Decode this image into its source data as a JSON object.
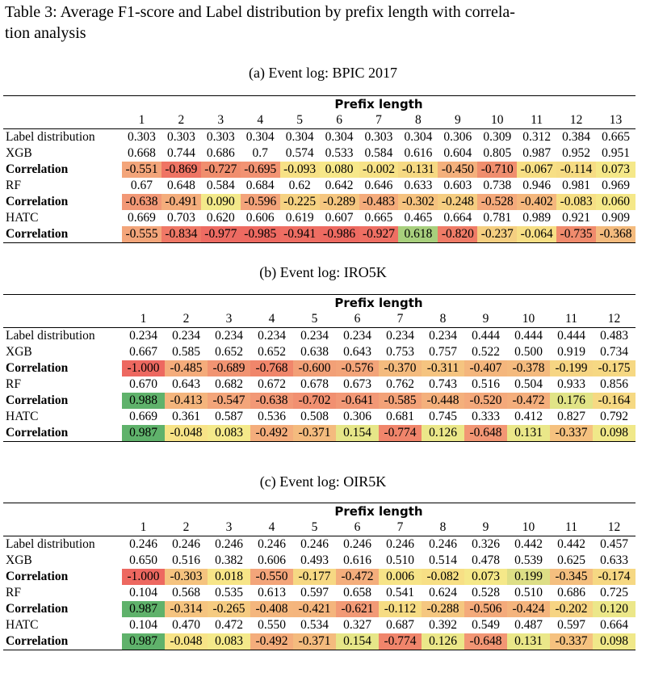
{
  "caption": "Table 3: Average F1-score and Label distribution by prefix length with correlation analysis",
  "caption_line1": "Table 3: Average F1-score and Label distribution by prefix length with correla-",
  "caption_line2": "tion analysis",
  "header_group_label": "Prefix length",
  "tables": [
    {
      "title": "(a) Event log: BPIC 2017",
      "prefixes": [
        "1",
        "2",
        "3",
        "4",
        "5",
        "6",
        "7",
        "8",
        "9",
        "10",
        "11",
        "12",
        "13"
      ],
      "rows": [
        {
          "label": "Label distribution",
          "bold": false,
          "values": [
            "0.303",
            "0.303",
            "0.303",
            "0.304",
            "0.304",
            "0.304",
            "0.303",
            "0.304",
            "0.306",
            "0.309",
            "0.312",
            "0.384",
            "0.665"
          ]
        },
        {
          "label": "XGB",
          "bold": false,
          "values": [
            "0.668",
            "0.744",
            "0.686",
            "0.7",
            "0.574",
            "0.533",
            "0.584",
            "0.616",
            "0.604",
            "0.805",
            "0.987",
            "0.952",
            "0.951"
          ]
        },
        {
          "label": "Correlation",
          "bold": true,
          "values": [
            "-0.551",
            "-0.869",
            "-0.727",
            "-0.695",
            "-0.093",
            "0.080",
            "-0.002",
            "-0.131",
            "-0.450",
            "-0.710",
            "-0.067",
            "-0.114",
            "0.073"
          ],
          "colors": [
            "#f3a57a",
            "#ef7464",
            "#f08e6e",
            "#f29373",
            "#f7e186",
            "#f7e88a",
            "#f7e287",
            "#f6d983",
            "#f4b07c",
            "#f08e6e",
            "#f7df85",
            "#f6dc84",
            "#f5e889"
          ]
        },
        {
          "label": "RF",
          "bold": false,
          "values": [
            "0.67",
            "0.648",
            "0.584",
            "0.684",
            "0.62",
            "0.642",
            "0.646",
            "0.633",
            "0.603",
            "0.738",
            "0.946",
            "0.981",
            "0.969"
          ]
        },
        {
          "label": "Correlation",
          "bold": true,
          "values": [
            "-0.638",
            "-0.491",
            "0.090",
            "-0.596",
            "-0.225",
            "-0.289",
            "-0.483",
            "-0.302",
            "-0.248",
            "-0.528",
            "-0.402",
            "-0.083",
            "0.060"
          ],
          "colors": [
            "#f29876",
            "#f4ad7c",
            "#f3e98a",
            "#f3a37a",
            "#f6d282",
            "#f5c680",
            "#f4ab7b",
            "#f5c27f",
            "#f5cd81",
            "#f4a97b",
            "#f4b77d",
            "#f6df85",
            "#f5e889"
          ]
        },
        {
          "label": "HATC",
          "bold": false,
          "values": [
            "0.669",
            "0.703",
            "0.620",
            "0.606",
            "0.619",
            "0.607",
            "0.665",
            "0.465",
            "0.664",
            "0.781",
            "0.989",
            "0.921",
            "0.909"
          ]
        },
        {
          "label": "Correlation",
          "bold": true,
          "values": [
            "-0.555",
            "-0.834",
            "-0.977",
            "-0.985",
            "-0.941",
            "-0.986",
            "-0.927",
            "0.618",
            "-0.820",
            "-0.237",
            "-0.064",
            "-0.735",
            "-0.368"
          ],
          "colors": [
            "#f3a57a",
            "#ef7866",
            "#ed6b62",
            "#ed6a61",
            "#ee6e63",
            "#ed6a61",
            "#ee6f63",
            "#a8cf7d",
            "#ef7c67",
            "#f5cf81",
            "#f7df85",
            "#f08b6d",
            "#f4bb7e"
          ]
        }
      ]
    },
    {
      "title": "(b) Event log: IRO5K",
      "prefixes": [
        "1",
        "2",
        "3",
        "4",
        "5",
        "6",
        "7",
        "8",
        "9",
        "10",
        "11",
        "12"
      ],
      "rows": [
        {
          "label": "Label distribution",
          "bold": false,
          "values": [
            "0.234",
            "0.234",
            "0.234",
            "0.234",
            "0.234",
            "0.234",
            "0.234",
            "0.234",
            "0.444",
            "0.444",
            "0.444",
            "0.483"
          ]
        },
        {
          "label": "XGB",
          "bold": false,
          "values": [
            "0.667",
            "0.585",
            "0.652",
            "0.652",
            "0.638",
            "0.643",
            "0.753",
            "0.757",
            "0.522",
            "0.500",
            "0.919",
            "0.734"
          ]
        },
        {
          "label": "Correlation",
          "bold": true,
          "values": [
            "-1.000",
            "-0.485",
            "-0.689",
            "-0.768",
            "-0.600",
            "-0.576",
            "-0.370",
            "-0.311",
            "-0.407",
            "-0.378",
            "-0.199",
            "-0.175"
          ],
          "colors": [
            "#ed6860",
            "#f4ac7b",
            "#f19472",
            "#f0866b",
            "#f2a077",
            "#f3a479",
            "#f4bb7e",
            "#f5c480",
            "#f4b67d",
            "#f4ba7e",
            "#f6d583",
            "#f6d883"
          ]
        },
        {
          "label": "RF",
          "bold": false,
          "values": [
            "0.670",
            "0.643",
            "0.682",
            "0.672",
            "0.678",
            "0.673",
            "0.762",
            "0.743",
            "0.516",
            "0.504",
            "0.933",
            "0.856"
          ]
        },
        {
          "label": "Correlation",
          "bold": true,
          "values": [
            "0.988",
            "-0.413",
            "-0.547",
            "-0.638",
            "-0.702",
            "-0.641",
            "-0.585",
            "-0.448",
            "-0.520",
            "-0.472",
            "0.176",
            "-0.164"
          ],
          "colors": [
            "#5fb26b",
            "#f4b57d",
            "#f3a57a",
            "#f29876",
            "#f19071",
            "#f29876",
            "#f3a278",
            "#f4b07c",
            "#f4a97b",
            "#f4ae7c",
            "#e1e487",
            "#f6d983"
          ]
        },
        {
          "label": "HATC",
          "bold": false,
          "values": [
            "0.669",
            "0.361",
            "0.587",
            "0.536",
            "0.508",
            "0.306",
            "0.681",
            "0.745",
            "0.333",
            "0.412",
            "0.827",
            "0.792"
          ]
        },
        {
          "label": "Correlation",
          "bold": true,
          "values": [
            "0.987",
            "-0.048",
            "0.083",
            "-0.492",
            "-0.371",
            "0.154",
            "-0.774",
            "0.126",
            "-0.648",
            "0.131",
            "-0.337",
            "0.098"
          ],
          "colors": [
            "#5fb26b",
            "#f7e387",
            "#f4e98a",
            "#f4ad7c",
            "#f4bb7e",
            "#e6e688",
            "#f0856b",
            "#ebe789",
            "#f29674",
            "#eae789",
            "#f5c17f",
            "#f0e889"
          ]
        }
      ]
    },
    {
      "title": "(c) Event log: OIR5K",
      "prefixes": [
        "1",
        "2",
        "3",
        "4",
        "5",
        "6",
        "7",
        "8",
        "9",
        "10",
        "11",
        "12"
      ],
      "rows": [
        {
          "label": "Label distribution",
          "bold": false,
          "values": [
            "0.246",
            "0.246",
            "0.246",
            "0.246",
            "0.246",
            "0.246",
            "0.246",
            "0.246",
            "0.326",
            "0.442",
            "0.442",
            "0.457"
          ]
        },
        {
          "label": "XGB",
          "bold": false,
          "values": [
            "0.650",
            "0.516",
            "0.382",
            "0.606",
            "0.493",
            "0.616",
            "0.510",
            "0.514",
            "0.478",
            "0.539",
            "0.625",
            "0.633"
          ]
        },
        {
          "label": "Correlation",
          "bold": true,
          "values": [
            "-1.000",
            "-0.303",
            "0.018",
            "-0.550",
            "-0.177",
            "-0.472",
            "0.006",
            "-0.082",
            "0.073",
            "0.199",
            "-0.345",
            "-0.174"
          ],
          "colors": [
            "#ed6860",
            "#f5c37f",
            "#f7e588",
            "#f3a57a",
            "#f6d883",
            "#f4ae7c",
            "#f7e488",
            "#f7df85",
            "#f5e889",
            "#ddde86",
            "#f4bf7f",
            "#f6d883"
          ]
        },
        {
          "label": "RF",
          "bold": false,
          "values": [
            "0.104",
            "0.568",
            "0.535",
            "0.613",
            "0.597",
            "0.658",
            "0.541",
            "0.624",
            "0.528",
            "0.510",
            "0.686",
            "0.725"
          ]
        },
        {
          "label": "Correlation",
          "bold": true,
          "values": [
            "0.987",
            "-0.314",
            "-0.265",
            "-0.408",
            "-0.421",
            "-0.621",
            "-0.112",
            "-0.288",
            "-0.506",
            "-0.424",
            "-0.202",
            "0.120"
          ],
          "colors": [
            "#5fb26b",
            "#f5c480",
            "#f5cb81",
            "#f4b67d",
            "#f4b57d",
            "#f29a76",
            "#f6dc84",
            "#f5c780",
            "#f4aa7b",
            "#f4b47d",
            "#f6d483",
            "#ece789"
          ]
        },
        {
          "label": "HATC",
          "bold": false,
          "values": [
            "0.104",
            "0.470",
            "0.472",
            "0.550",
            "0.534",
            "0.327",
            "0.687",
            "0.392",
            "0.549",
            "0.487",
            "0.597",
            "0.664"
          ]
        },
        {
          "label": "Correlation",
          "bold": true,
          "values": [
            "0.987",
            "-0.048",
            "0.083",
            "-0.492",
            "-0.371",
            "0.154",
            "-0.774",
            "0.126",
            "-0.648",
            "0.131",
            "-0.337",
            "0.098"
          ],
          "colors": [
            "#5fb26b",
            "#f7e387",
            "#f4e98a",
            "#f4ad7c",
            "#f4bb7e",
            "#e6e688",
            "#f0856b",
            "#ebe789",
            "#f29674",
            "#eae789",
            "#f5c17f",
            "#f0e889"
          ]
        }
      ]
    }
  ]
}
